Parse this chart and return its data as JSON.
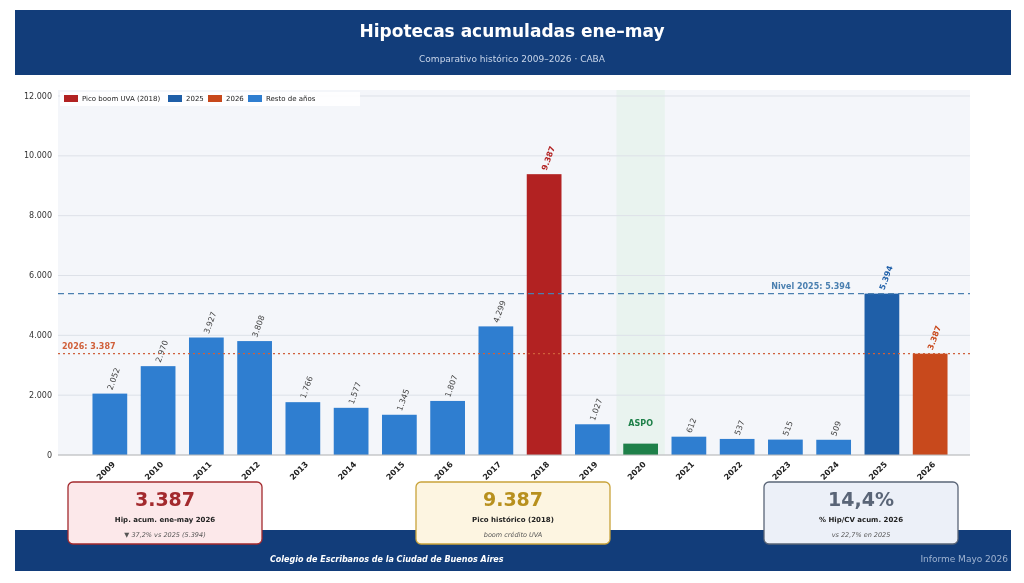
{
  "chart_data": {
    "type": "bar",
    "title": "Hipotecas acumuladas ene–may",
    "subtitle": "Comparativo histórico 2009–2026 · CABA",
    "categories": [
      "2009",
      "2010",
      "2011",
      "2012",
      "2013",
      "2014",
      "2015",
      "2016",
      "2017",
      "2018",
      "2019",
      "2020",
      "2021",
      "2022",
      "2023",
      "2024",
      "2025",
      "2026"
    ],
    "series": [
      {
        "name": "Pico boom UVA (2018)",
        "color": "#b22222",
        "values": [
          null,
          null,
          null,
          null,
          null,
          null,
          null,
          null,
          null,
          9387,
          null,
          null,
          null,
          null,
          null,
          null,
          null,
          null
        ],
        "value_labels": [
          null,
          null,
          null,
          null,
          null,
          null,
          null,
          null,
          null,
          "9.387",
          null,
          null,
          null,
          null,
          null,
          null,
          null,
          null
        ]
      },
      {
        "name": "2025",
        "color": "#1f5fa8",
        "values": [
          null,
          null,
          null,
          null,
          null,
          null,
          null,
          null,
          null,
          null,
          null,
          null,
          null,
          null,
          null,
          null,
          5394,
          null
        ],
        "value_labels": [
          null,
          null,
          null,
          null,
          null,
          null,
          null,
          null,
          null,
          null,
          null,
          null,
          null,
          null,
          null,
          null,
          "5.394",
          null
        ]
      },
      {
        "name": "2026",
        "color": "#c8491c",
        "values": [
          null,
          null,
          null,
          null,
          null,
          null,
          null,
          null,
          null,
          null,
          null,
          null,
          null,
          null,
          null,
          null,
          null,
          3387
        ],
        "value_labels": [
          null,
          null,
          null,
          null,
          null,
          null,
          null,
          null,
          null,
          null,
          null,
          null,
          null,
          null,
          null,
          null,
          null,
          "3.387"
        ]
      },
      {
        "name": "Resto de años",
        "color": "#2f7ed0",
        "values": [
          2052,
          2970,
          3927,
          3808,
          1766,
          1577,
          1345,
          1807,
          4299,
          null,
          1027,
          null,
          612,
          537,
          515,
          509,
          null,
          null
        ],
        "value_labels": [
          "2.052",
          "2.970",
          "3.927",
          "3.808",
          "1.766",
          "1.577",
          "1.345",
          "1.807",
          "4.299",
          null,
          "1.027",
          null,
          "612",
          "537",
          "515",
          "509",
          null,
          null
        ]
      },
      {
        "color": "#1e8049",
        "values": [
          null,
          null,
          null,
          null,
          null,
          null,
          null,
          null,
          null,
          null,
          null,
          380,
          null,
          null,
          null,
          null,
          null,
          null
        ]
      }
    ],
    "ylim": [
      0,
      12000
    ],
    "yticks": [
      0,
      {
        "value": 2000,
        "label": "2.000"
      },
      {
        "value": 4000,
        "label": "4.000"
      },
      {
        "value": 6000,
        "label": "6.000"
      },
      {
        "value": 8000,
        "label": "8.000"
      },
      {
        "value": 10000,
        "label": "10.000"
      },
      {
        "value": 12000,
        "label": "12.000"
      }
    ],
    "grid": "y",
    "legend": "top left",
    "ref_lines": [
      {
        "axis": "y",
        "value": 5394,
        "label": "Nivel 2025: 5.394",
        "color": "#4a7fb0",
        "line_style": "dashed"
      },
      {
        "axis": "y",
        "value": 3387,
        "label": "2026: 3.387",
        "color": "#d0603a",
        "line_style": "dotted"
      }
    ],
    "bands": [
      {
        "axis": "x",
        "from": "2020",
        "to": "2020",
        "label": "ASPO",
        "color": "#e6f2ec"
      }
    ],
    "annotations": [
      "3.387",
      "Hip. acum. ene-may 2026",
      "▼ 37,2% vs 2025 (5.394)",
      "9.387",
      "Pico histórico (2018)",
      "boom crédito UVA",
      "14,4%",
      "% Hip/CV acum. 2026",
      "vs 22,7% en 2025",
      "Colegio de Escribanos de la Ciudad de Buenos Aires",
      "Informe Mayo 2026"
    ]
  }
}
